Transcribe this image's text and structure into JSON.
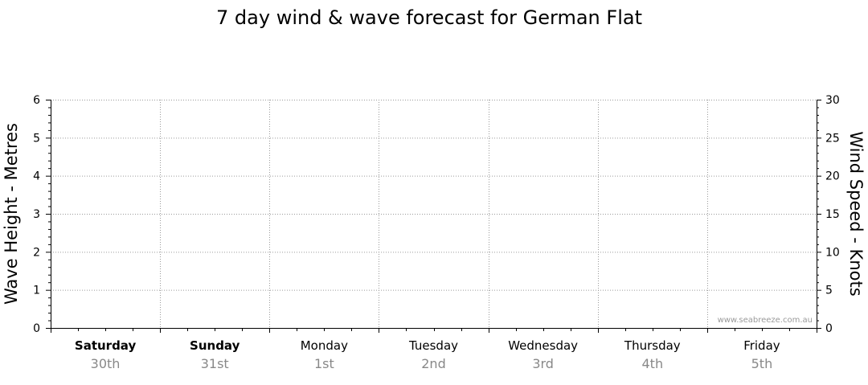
{
  "chart_data": {
    "type": "line",
    "title": "7 day wind & wave forecast for German Flat",
    "y_left": {
      "label": "Wave Height - Metres",
      "lim": [
        0,
        6
      ],
      "ticks": [
        "0",
        "1",
        "2",
        "3",
        "4",
        "5",
        "6"
      ]
    },
    "y_right": {
      "label": "Wind Speed - Knots",
      "lim": [
        0,
        30
      ],
      "ticks": [
        "0",
        "5",
        "10",
        "15",
        "20",
        "25",
        "30"
      ]
    },
    "days": [
      {
        "name": "Saturday",
        "date": "30th",
        "bold": true
      },
      {
        "name": "Sunday",
        "date": "31st",
        "bold": true
      },
      {
        "name": "Monday",
        "date": "1st",
        "bold": false
      },
      {
        "name": "Tuesday",
        "date": "2nd",
        "bold": false
      },
      {
        "name": "Wednesday",
        "date": "3rd",
        "bold": false
      },
      {
        "name": "Thursday",
        "date": "4th",
        "bold": false
      },
      {
        "name": "Friday",
        "date": "5th",
        "bold": false
      }
    ],
    "grid": true,
    "series": [],
    "watermark": "www.seabreeze.com.au"
  },
  "colors": {
    "grid": "#9a9a9a",
    "axis": "#000000",
    "date": "#888888",
    "watermark": "#9a9a9a"
  }
}
